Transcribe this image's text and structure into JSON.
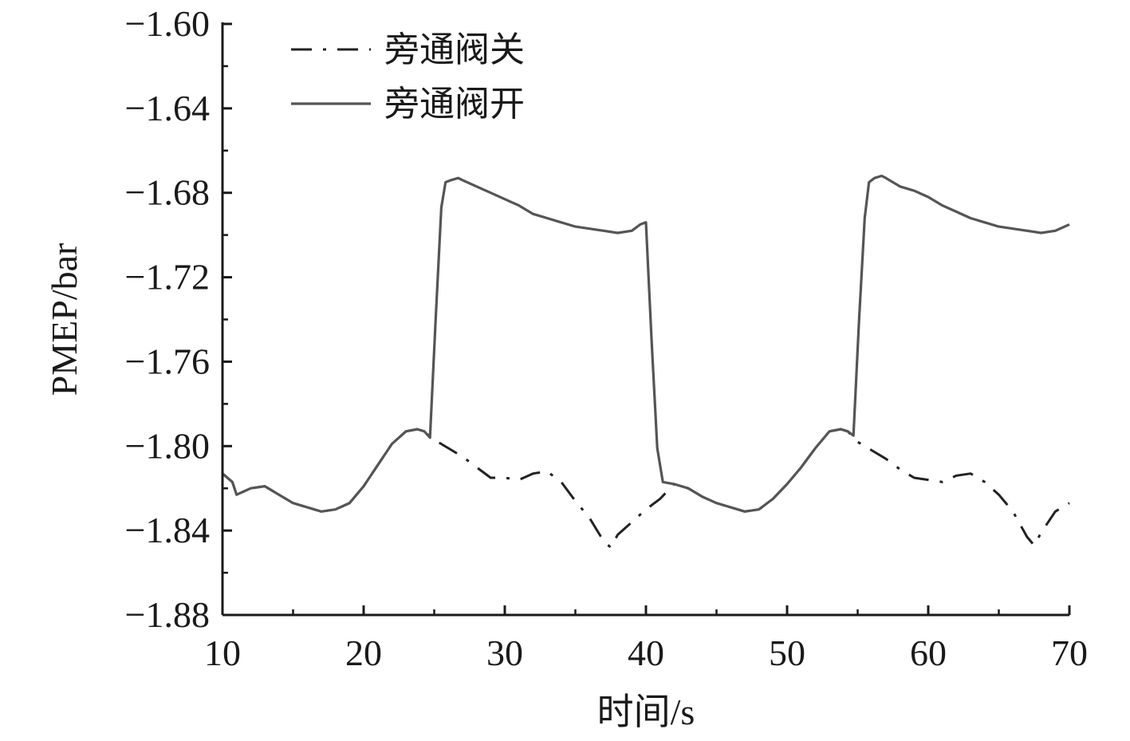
{
  "chart_data": {
    "type": "line",
    "title": "",
    "xlabel": "时间/s",
    "ylabel": "PMEP/bar",
    "xlim": [
      10,
      70
    ],
    "ylim": [
      -1.88,
      -1.6
    ],
    "xticks": [
      10,
      20,
      30,
      40,
      50,
      60,
      70
    ],
    "xtick_labels": [
      "10",
      "20",
      "30",
      "40",
      "50",
      "60",
      "70"
    ],
    "yticks": [
      -1.6,
      -1.64,
      -1.68,
      -1.72,
      -1.76,
      -1.8,
      -1.84,
      -1.88
    ],
    "ytick_labels": [
      "−1.60",
      "−1.64",
      "−1.68",
      "−1.72",
      "−1.76",
      "−1.80",
      "−1.84",
      "−1.88"
    ],
    "grid": false,
    "legend_position": "top-left",
    "series": [
      {
        "name": "旁通阀关",
        "style": "dash-dot",
        "color": "#222222",
        "x": [
          10,
          10.7,
          11,
          12,
          13,
          14,
          15,
          16,
          17,
          18,
          19,
          20,
          21,
          22,
          23,
          23.8,
          24.3,
          25,
          26,
          27,
          28,
          29,
          30,
          31,
          32,
          33,
          34,
          35,
          36,
          37,
          37.5,
          38,
          39,
          40,
          41,
          42,
          43,
          44,
          45,
          46,
          47,
          48,
          49,
          50,
          51,
          52,
          53,
          53.8,
          54.3,
          55,
          56,
          57,
          58,
          59,
          60,
          61,
          62,
          63,
          64,
          65,
          66,
          67,
          67.5,
          68,
          69,
          70
        ],
        "y": [
          -1.813,
          -1.817,
          -1.823,
          -1.82,
          -1.819,
          -1.823,
          -1.827,
          -1.829,
          -1.831,
          -1.83,
          -1.827,
          -1.819,
          -1.809,
          -1.799,
          -1.793,
          -1.792,
          -1.793,
          -1.797,
          -1.801,
          -1.805,
          -1.81,
          -1.815,
          -1.815,
          -1.816,
          -1.813,
          -1.812,
          -1.817,
          -1.826,
          -1.834,
          -1.845,
          -1.848,
          -1.842,
          -1.836,
          -1.83,
          -1.825,
          -1.818,
          -1.82,
          -1.824,
          -1.827,
          -1.829,
          -1.831,
          -1.83,
          -1.825,
          -1.818,
          -1.81,
          -1.801,
          -1.793,
          -1.792,
          -1.793,
          -1.798,
          -1.802,
          -1.806,
          -1.811,
          -1.815,
          -1.816,
          -1.817,
          -1.814,
          -1.813,
          -1.817,
          -1.823,
          -1.831,
          -1.843,
          -1.847,
          -1.841,
          -1.831,
          -1.827
        ]
      },
      {
        "name": "旁通阀开",
        "style": "solid",
        "color": "#555555",
        "x": [
          10,
          10.7,
          11,
          12,
          13,
          14,
          15,
          16,
          17,
          18,
          19,
          20,
          21,
          22,
          23,
          23.8,
          24.3,
          24.7,
          25.1,
          25.5,
          25.8,
          26.2,
          26.7,
          27,
          28,
          29,
          30,
          31,
          32,
          33,
          34,
          35,
          36,
          37,
          38,
          39,
          39.6,
          40,
          40.4,
          40.8,
          41.2,
          42,
          43,
          44,
          45,
          46,
          47,
          48,
          49,
          50,
          51,
          52,
          53,
          53.8,
          54.3,
          54.7,
          55.1,
          55.5,
          55.8,
          56.2,
          56.7,
          57,
          58,
          59,
          60,
          61,
          62,
          63,
          64,
          65,
          66,
          67,
          68,
          69,
          70
        ],
        "y": [
          -1.813,
          -1.817,
          -1.823,
          -1.82,
          -1.819,
          -1.823,
          -1.827,
          -1.829,
          -1.831,
          -1.83,
          -1.827,
          -1.819,
          -1.809,
          -1.799,
          -1.793,
          -1.792,
          -1.793,
          -1.796,
          -1.74,
          -1.687,
          -1.675,
          -1.674,
          -1.673,
          -1.674,
          -1.677,
          -1.68,
          -1.683,
          -1.686,
          -1.69,
          -1.692,
          -1.694,
          -1.696,
          -1.697,
          -1.698,
          -1.699,
          -1.698,
          -1.695,
          -1.694,
          -1.75,
          -1.801,
          -1.817,
          -1.818,
          -1.82,
          -1.824,
          -1.827,
          -1.829,
          -1.831,
          -1.83,
          -1.825,
          -1.818,
          -1.81,
          -1.801,
          -1.793,
          -1.792,
          -1.793,
          -1.795,
          -1.74,
          -1.692,
          -1.675,
          -1.673,
          -1.672,
          -1.673,
          -1.677,
          -1.679,
          -1.682,
          -1.686,
          -1.689,
          -1.692,
          -1.694,
          -1.696,
          -1.697,
          -1.698,
          -1.699,
          -1.698,
          -1.695
        ]
      }
    ]
  }
}
